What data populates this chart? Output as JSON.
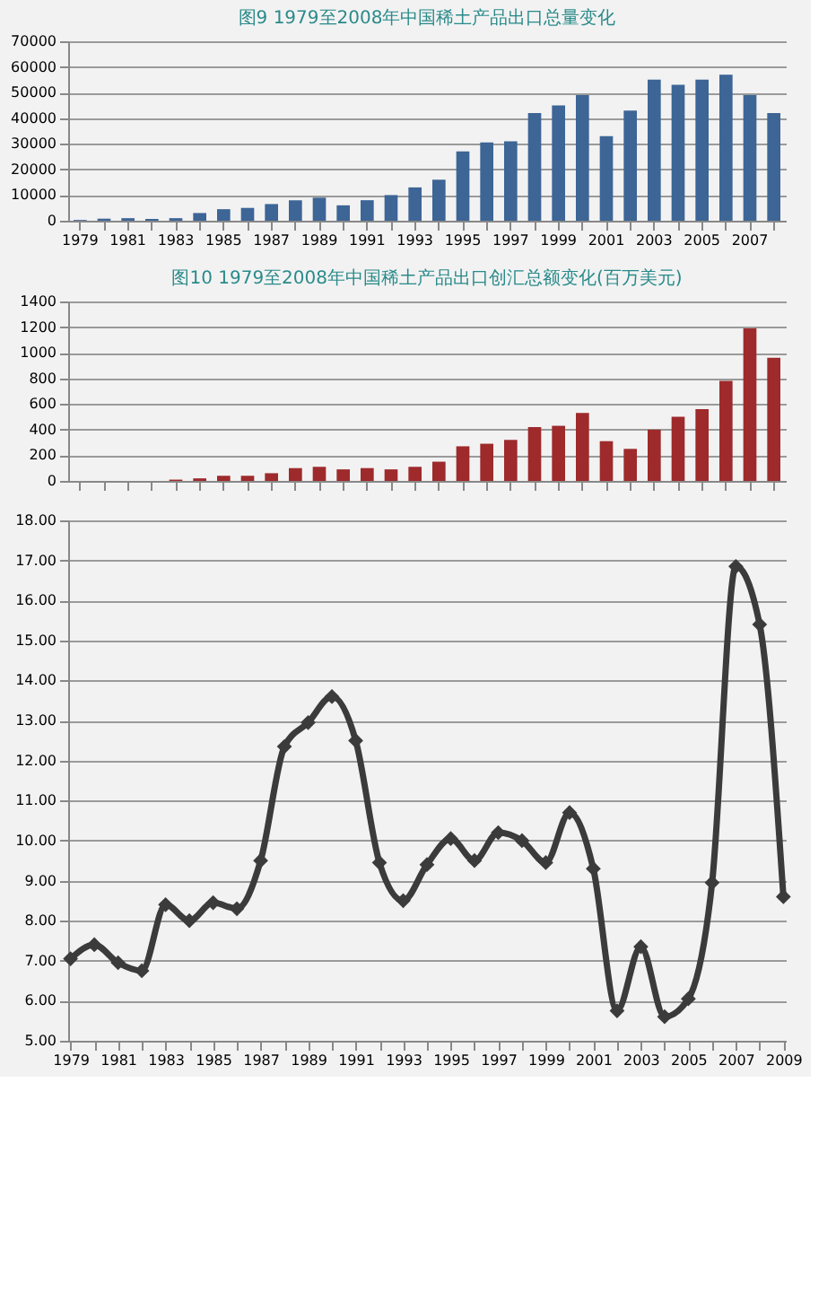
{
  "chart_data": [
    {
      "type": "bar",
      "title": "图9 1979至2008年中国稀土产品出口总量变化",
      "categories": [
        "1979",
        null,
        "1981",
        null,
        "1983",
        null,
        "1985",
        null,
        "1987",
        null,
        "1989",
        null,
        "1991",
        null,
        "1993",
        null,
        "1995",
        null,
        "1997",
        null,
        "1999",
        null,
        "2001",
        null,
        "2003",
        null,
        "2005",
        null,
        "2007",
        null
      ],
      "series": [
        {
          "color": "#3d6596",
          "values": [
            300,
            800,
            1000,
            700,
            1000,
            3000,
            4500,
            5000,
            6500,
            8000,
            9000,
            6000,
            8000,
            10000,
            13000,
            16000,
            27000,
            30500,
            31000,
            42000,
            45000,
            49000,
            33000,
            43000,
            55000,
            53000,
            55000,
            57000,
            49000,
            42000
          ]
        }
      ],
      "ylim": [
        0,
        70000
      ],
      "yticks": [
        0,
        10000,
        20000,
        30000,
        40000,
        50000,
        60000,
        70000
      ],
      "grid": "y"
    },
    {
      "type": "bar",
      "title": "图10 1979至2008年中国稀土产品出口创汇总额变化(百万美元)",
      "categories": [
        null,
        null,
        null,
        null,
        null,
        null,
        null,
        null,
        null,
        null,
        null,
        null,
        null,
        null,
        null,
        null,
        null,
        null,
        null,
        null,
        null,
        null,
        null,
        null,
        null,
        null,
        null,
        null,
        null,
        null
      ],
      "series": [
        {
          "color": "#9e2a2b",
          "values": [
            0,
            0,
            0,
            0,
            10,
            20,
            40,
            40,
            60,
            100,
            110,
            90,
            100,
            90,
            110,
            150,
            270,
            290,
            320,
            420,
            430,
            530,
            310,
            250,
            400,
            500,
            560,
            780,
            1190,
            960
          ]
        }
      ],
      "ylim": [
        0,
        1400
      ],
      "yticks": [
        0,
        200,
        400,
        600,
        800,
        1000,
        1200,
        1400
      ],
      "grid": "y",
      "tick_labels": "y"
    },
    {
      "type": "line",
      "categories": [
        "1979",
        null,
        "1981",
        null,
        "1983",
        null,
        "1985",
        null,
        "1987",
        null,
        "1989",
        null,
        "1991",
        null,
        "1993",
        null,
        "1995",
        null,
        "1997",
        null,
        "1999",
        null,
        "2001",
        null,
        "2003",
        null,
        "2005",
        null,
        "2007",
        null,
        "2009"
      ],
      "series": [
        {
          "color": "#3b3b3b",
          "values": [
            7.05,
            7.4,
            6.95,
            6.75,
            8.4,
            8.0,
            8.45,
            8.3,
            9.5,
            12.35,
            12.95,
            13.6,
            12.5,
            9.45,
            8.5,
            9.4,
            10.05,
            9.5,
            10.2,
            10.0,
            9.45,
            10.7,
            9.3,
            5.75,
            7.35,
            5.6,
            6.05,
            8.95,
            16.85,
            15.4,
            8.6
          ]
        }
      ],
      "ylim": [
        5,
        18
      ],
      "yticks": [
        {
          "value": 5,
          "label": "5.00"
        },
        {
          "value": 6,
          "label": "6.00"
        },
        {
          "value": 7,
          "label": "7.00"
        },
        {
          "value": 8,
          "label": "8.00"
        },
        {
          "value": 9,
          "label": "9.00"
        },
        {
          "value": 10,
          "label": "10.00"
        },
        {
          "value": 11,
          "label": "11.00"
        },
        {
          "value": 12,
          "label": "12.00"
        },
        {
          "value": 13,
          "label": "13.00"
        },
        {
          "value": 14,
          "label": "14.00"
        },
        {
          "value": 15,
          "label": "15.00"
        },
        {
          "value": 16,
          "label": "16.00"
        },
        {
          "value": 17,
          "label": "17.00"
        },
        {
          "value": 18,
          "label": "18.00"
        }
      ],
      "grid": "y",
      "marker": "diamond",
      "line_style": "solid"
    }
  ]
}
